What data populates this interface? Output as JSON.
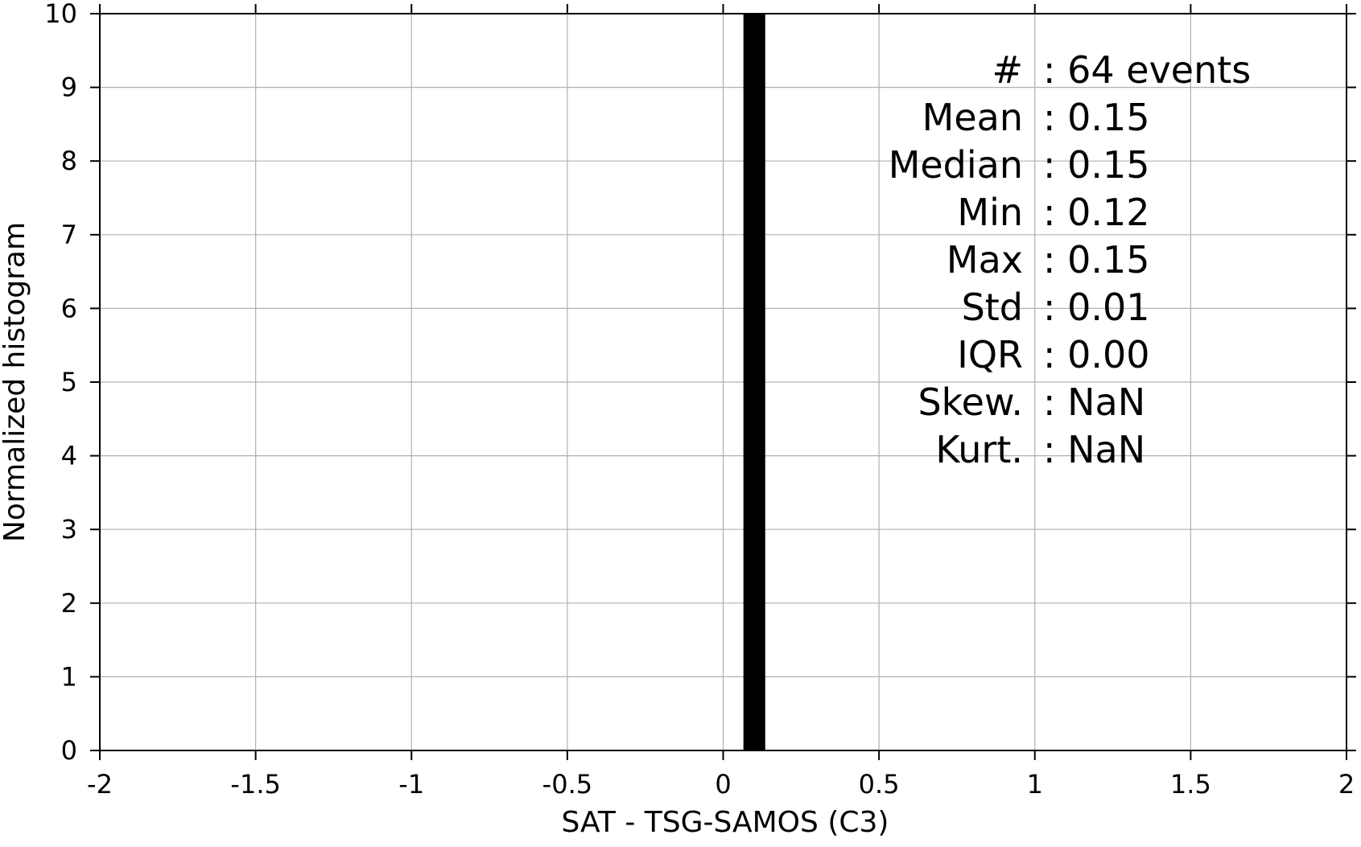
{
  "chart_data": {
    "type": "bar",
    "title": "",
    "xlabel": "SAT - TSG-SAMOS (C3)",
    "ylabel": "Normalized histogram",
    "xlim": [
      -2,
      2
    ],
    "ylim": [
      0,
      10
    ],
    "xticks": [
      "-2",
      "-1.5",
      "-1",
      "-0.5",
      "0",
      "0.5",
      "1",
      "1.5",
      "2"
    ],
    "yticks": [
      "0",
      "1",
      "2",
      "3",
      "4",
      "5",
      "6",
      "7",
      "8",
      "9",
      "10"
    ],
    "grid": true,
    "bars": [
      {
        "x_start": 0.065,
        "x_end": 0.135,
        "value": 10,
        "color": "#000000"
      }
    ],
    "stats": [
      {
        "label": "#",
        "value": "64 events"
      },
      {
        "label": "Mean",
        "value": "0.15"
      },
      {
        "label": "Median",
        "value": "0.15"
      },
      {
        "label": "Min",
        "value": "0.12"
      },
      {
        "label": "Max",
        "value": "0.15"
      },
      {
        "label": "Std",
        "value": "0.01"
      },
      {
        "label": "IQR",
        "value": "0.00"
      },
      {
        "label": "Skew.",
        "value": "NaN"
      },
      {
        "label": "Kurt.",
        "value": "NaN"
      }
    ]
  }
}
